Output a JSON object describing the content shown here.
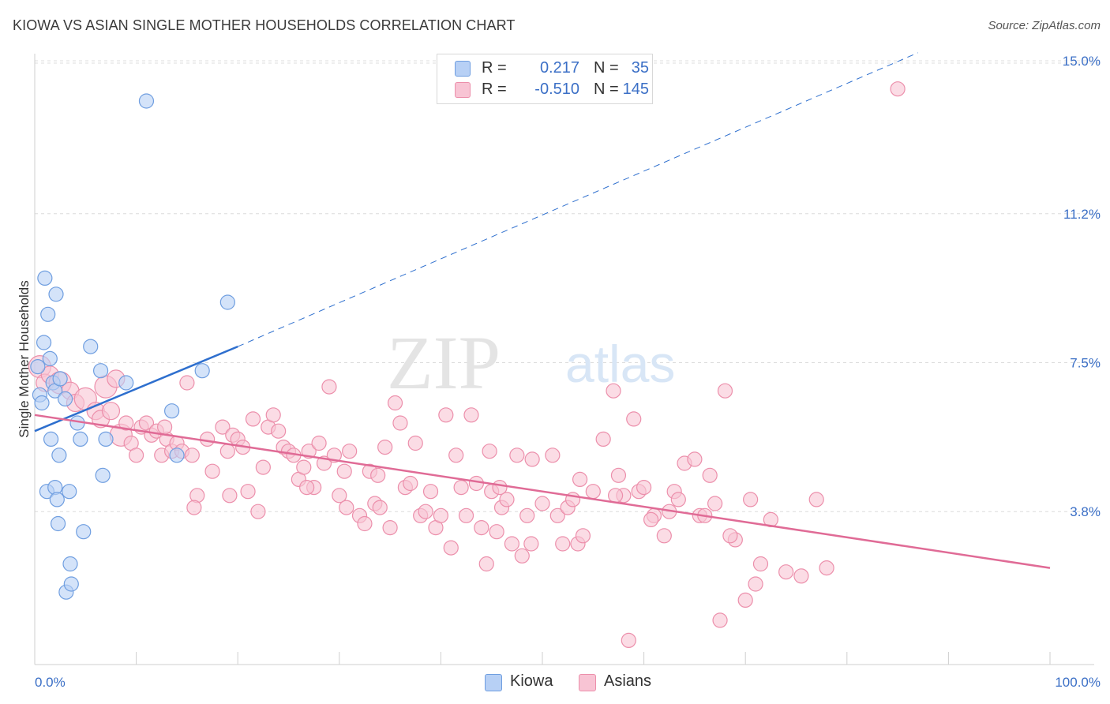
{
  "header": {
    "title": "KIOWA VS ASIAN SINGLE MOTHER HOUSEHOLDS CORRELATION CHART",
    "source": "Source: ZipAtlas.com"
  },
  "watermark": {
    "zip": "ZIP",
    "atlas": "atlas"
  },
  "legend": {
    "kiowa": {
      "r_label": "R =",
      "r_value": "0.217",
      "n_label": "N =",
      "n_value": "35"
    },
    "asians": {
      "r_label": "R =",
      "r_value": "-0.510",
      "n_label": "N =",
      "n_value": "145"
    }
  },
  "bottom_legend": {
    "kiowa": "Kiowa",
    "asians": "Asians"
  },
  "colors": {
    "kiowa_fill": "#b7d0f5",
    "kiowa_stroke": "#6f9ee0",
    "kiowa_line": "#2e6fce",
    "asian_fill": "#f8c4d4",
    "asian_stroke": "#ec8fab",
    "asian_line": "#e06b96",
    "tick_text": "#3b6fc6",
    "grid": "#dcdcdc"
  },
  "chart_data": {
    "type": "scatter",
    "title": "KIOWA VS ASIAN SINGLE MOTHER HOUSEHOLDS CORRELATION CHART",
    "xlabel": "",
    "ylabel": "Single Mother Households",
    "xlim": [
      0,
      100
    ],
    "ylim": [
      0,
      16
    ],
    "x_tick_labels": [
      "0.0%",
      "100.0%"
    ],
    "y_ticks": [
      3.8,
      7.5,
      11.2,
      15.0
    ],
    "y_tick_labels": [
      "3.8%",
      "7.5%",
      "11.2%",
      "15.0%"
    ],
    "grid": true,
    "legend_position": "top-center",
    "series": [
      {
        "name": "Kiowa",
        "r": 0.217,
        "n": 35,
        "trend": {
          "x": [
            0,
            20
          ],
          "y": [
            5.8,
            7.9
          ],
          "extended_to": [
            87,
            15.2
          ]
        },
        "points": [
          [
            0.3,
            7.4
          ],
          [
            0.5,
            6.7
          ],
          [
            0.7,
            6.5
          ],
          [
            0.9,
            8.0
          ],
          [
            1.0,
            9.6
          ],
          [
            1.2,
            4.3
          ],
          [
            1.3,
            8.7
          ],
          [
            1.5,
            7.6
          ],
          [
            1.6,
            5.6
          ],
          [
            1.8,
            7.0
          ],
          [
            2.0,
            6.8
          ],
          [
            2.0,
            4.4
          ],
          [
            2.1,
            9.2
          ],
          [
            2.2,
            4.1
          ],
          [
            2.3,
            3.5
          ],
          [
            2.4,
            5.2
          ],
          [
            2.5,
            7.1
          ],
          [
            3.0,
            6.6
          ],
          [
            3.1,
            1.8
          ],
          [
            3.4,
            4.3
          ],
          [
            3.5,
            2.5
          ],
          [
            3.6,
            2.0
          ],
          [
            4.2,
            6.0
          ],
          [
            4.5,
            5.6
          ],
          [
            4.8,
            3.3
          ],
          [
            5.5,
            7.9
          ],
          [
            6.5,
            7.3
          ],
          [
            6.7,
            4.7
          ],
          [
            7.0,
            5.6
          ],
          [
            9.0,
            7.0
          ],
          [
            11.0,
            14.0
          ],
          [
            13.5,
            6.3
          ],
          [
            14.0,
            5.2
          ],
          [
            16.5,
            7.3
          ],
          [
            19.0,
            9.0
          ]
        ]
      },
      {
        "name": "Asians",
        "r": -0.51,
        "n": 145,
        "trend": {
          "x": [
            0,
            100
          ],
          "y": [
            6.2,
            2.4
          ]
        },
        "points": [
          [
            0.5,
            7.4
          ],
          [
            1.0,
            7.0
          ],
          [
            1.5,
            7.2
          ],
          [
            2.5,
            7.0
          ],
          [
            3.5,
            6.8
          ],
          [
            4.0,
            6.5
          ],
          [
            5.0,
            6.6
          ],
          [
            6.0,
            6.3
          ],
          [
            6.5,
            6.1
          ],
          [
            7.0,
            6.9
          ],
          [
            8.0,
            7.1
          ],
          [
            7.5,
            6.3
          ],
          [
            8.5,
            5.7
          ],
          [
            9.0,
            6.0
          ],
          [
            9.5,
            5.5
          ],
          [
            10.5,
            5.9
          ],
          [
            11.0,
            6.0
          ],
          [
            11.5,
            5.7
          ],
          [
            12.0,
            5.8
          ],
          [
            12.5,
            5.2
          ],
          [
            13.0,
            5.6
          ],
          [
            13.5,
            5.3
          ],
          [
            14.0,
            5.5
          ],
          [
            14.5,
            5.3
          ],
          [
            15.0,
            7.0
          ],
          [
            15.5,
            5.2
          ],
          [
            16.0,
            4.2
          ],
          [
            17.0,
            5.6
          ],
          [
            17.5,
            4.8
          ],
          [
            18.5,
            5.9
          ],
          [
            19.0,
            5.3
          ],
          [
            19.5,
            5.7
          ],
          [
            20.0,
            5.6
          ],
          [
            20.5,
            5.4
          ],
          [
            21.0,
            4.3
          ],
          [
            21.5,
            6.1
          ],
          [
            22.0,
            3.8
          ],
          [
            22.5,
            4.9
          ],
          [
            23.0,
            5.9
          ],
          [
            23.5,
            6.2
          ],
          [
            24.0,
            5.8
          ],
          [
            24.5,
            5.4
          ],
          [
            25.0,
            5.3
          ],
          [
            25.5,
            5.2
          ],
          [
            26.0,
            4.6
          ],
          [
            26.5,
            4.9
          ],
          [
            27.0,
            5.3
          ],
          [
            27.5,
            4.4
          ],
          [
            28.0,
            5.5
          ],
          [
            28.5,
            5.0
          ],
          [
            29.0,
            6.9
          ],
          [
            29.5,
            5.2
          ],
          [
            30.0,
            4.2
          ],
          [
            30.5,
            4.8
          ],
          [
            31.0,
            5.3
          ],
          [
            32.0,
            3.7
          ],
          [
            32.5,
            3.5
          ],
          [
            33.0,
            4.8
          ],
          [
            33.5,
            4.0
          ],
          [
            34.0,
            3.9
          ],
          [
            34.5,
            5.4
          ],
          [
            35.0,
            3.4
          ],
          [
            35.5,
            6.5
          ],
          [
            36.0,
            6.0
          ],
          [
            36.5,
            4.4
          ],
          [
            37.0,
            4.5
          ],
          [
            37.5,
            5.5
          ],
          [
            38.0,
            3.7
          ],
          [
            38.5,
            3.8
          ],
          [
            39.0,
            4.3
          ],
          [
            39.5,
            3.4
          ],
          [
            40.0,
            3.7
          ],
          [
            40.5,
            6.2
          ],
          [
            41.0,
            2.9
          ],
          [
            41.5,
            5.2
          ],
          [
            42.0,
            4.4
          ],
          [
            42.5,
            3.7
          ],
          [
            43.0,
            6.2
          ],
          [
            43.5,
            4.5
          ],
          [
            44.0,
            3.4
          ],
          [
            44.5,
            2.5
          ],
          [
            45.0,
            4.3
          ],
          [
            45.5,
            3.3
          ],
          [
            46.0,
            3.9
          ],
          [
            46.5,
            4.1
          ],
          [
            47.0,
            3.0
          ],
          [
            47.5,
            5.2
          ],
          [
            48.0,
            2.7
          ],
          [
            48.5,
            3.7
          ],
          [
            49.0,
            5.1
          ],
          [
            50.0,
            4.0
          ],
          [
            51.0,
            5.2
          ],
          [
            51.5,
            3.7
          ],
          [
            52.0,
            3.0
          ],
          [
            52.5,
            3.9
          ],
          [
            53.0,
            4.1
          ],
          [
            53.5,
            3.0
          ],
          [
            54.0,
            3.2
          ],
          [
            55.0,
            4.3
          ],
          [
            56.0,
            5.6
          ],
          [
            57.0,
            6.8
          ],
          [
            57.5,
            4.7
          ],
          [
            58.0,
            4.2
          ],
          [
            58.5,
            0.6
          ],
          [
            59.0,
            6.1
          ],
          [
            59.5,
            4.3
          ],
          [
            60.0,
            4.4
          ],
          [
            61.0,
            3.7
          ],
          [
            62.0,
            3.2
          ],
          [
            62.5,
            3.8
          ],
          [
            63.0,
            4.3
          ],
          [
            64.0,
            5.0
          ],
          [
            65.0,
            5.1
          ],
          [
            65.5,
            3.7
          ],
          [
            66.0,
            3.7
          ],
          [
            66.5,
            4.7
          ],
          [
            67.0,
            4.0
          ],
          [
            67.5,
            1.1
          ],
          [
            68.0,
            6.8
          ],
          [
            69.0,
            3.1
          ],
          [
            70.0,
            1.6
          ],
          [
            70.5,
            4.1
          ],
          [
            71.0,
            2.0
          ],
          [
            71.5,
            2.5
          ],
          [
            72.5,
            3.6
          ],
          [
            74.0,
            2.3
          ],
          [
            75.5,
            2.2
          ],
          [
            77.0,
            4.1
          ],
          [
            78.0,
            2.4
          ],
          [
            85.0,
            14.3
          ],
          [
            19.2,
            4.2
          ],
          [
            26.8,
            4.4
          ],
          [
            10.0,
            5.2
          ],
          [
            12.8,
            5.9
          ],
          [
            33.8,
            4.7
          ],
          [
            45.8,
            4.4
          ],
          [
            57.2,
            4.2
          ],
          [
            63.4,
            4.1
          ],
          [
            48.9,
            3.0
          ],
          [
            30.7,
            3.9
          ],
          [
            44.8,
            5.3
          ],
          [
            53.7,
            4.6
          ],
          [
            60.7,
            3.6
          ],
          [
            68.5,
            3.2
          ],
          [
            15.7,
            3.9
          ]
        ]
      }
    ]
  }
}
